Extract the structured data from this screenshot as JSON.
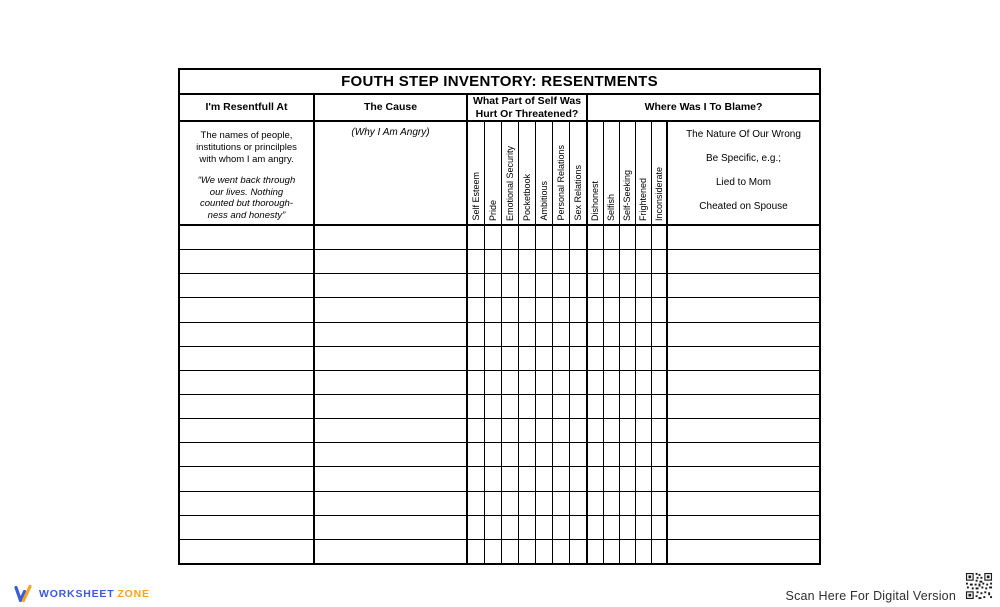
{
  "worksheet": {
    "title": "FOUTH STEP INVENTORY: RESENTMENTS",
    "headers": {
      "col1": "I'm Resentfull At",
      "col2": "The Cause",
      "col3": "What Part of Self Was\nHurt Or Threatened?",
      "col4": "Where Was I To Blame?"
    },
    "col1_description": "The names of people,\ninstitutions or princilples\nwith whom I am angry.",
    "col1_quote": "“We went back through\nour lives. Nothing\ncounted but thorough-\nness and honesty”",
    "col2_note": "(Why I Am Angry)",
    "hurt_labels": [
      "Self Esteem",
      "Pride",
      "Emotional Security",
      "Pocketbook",
      "Ambitious",
      "Personal Relations",
      "Sex Relations"
    ],
    "blame_labels": [
      "Dishonest",
      "Selfish",
      "Self-Seeking",
      "Frightened",
      "Inconsiderate"
    ],
    "blame_note": "The Nature Of Our Wrong\n\nBe Specific, e.g.;\n\nLied to Mom\n\nCheated on Spouse",
    "body_row_count": 14
  },
  "footer": {
    "brand_word1": "WORKSHEET",
    "brand_word2": "ZONE",
    "brand_color_blue": "#3b5bdb",
    "brand_color_orange": "#f7a325",
    "scan_text": "Scan Here For Digital Version"
  }
}
